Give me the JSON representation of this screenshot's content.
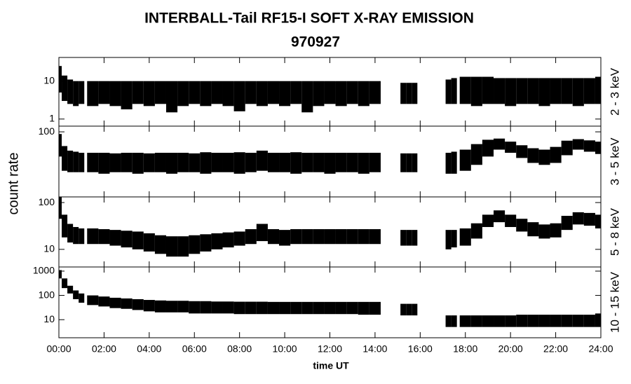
{
  "title": "INTERBALL-Tail RF15-I SOFT X-RAY EMISSION",
  "subtitle": "970927",
  "ylabel": "count rate",
  "xlabel": "time UT",
  "chart_data": [
    {
      "type": "band",
      "label": "2 - 3 keV",
      "log_scale": true,
      "xlim": [
        0,
        24
      ],
      "ylim": [
        0.65,
        42
      ],
      "yticks": [
        1,
        10
      ],
      "x": [
        0,
        0.25,
        0.5,
        0.75,
        1,
        1.5,
        2,
        2.5,
        3,
        3.5,
        4,
        4.5,
        5,
        5.5,
        6,
        6.5,
        7,
        7.5,
        8,
        8.5,
        9,
        9.5,
        10,
        10.5,
        11,
        11.5,
        12,
        12.5,
        13,
        13.5,
        14,
        14.5,
        15.25,
        15.5,
        15.75,
        16.5,
        17.25,
        17.5,
        18,
        18.5,
        19,
        19.5,
        20,
        20.5,
        21,
        21.5,
        22,
        22.5,
        23,
        23.5,
        24
      ],
      "series": [
        {
          "color": "#000000",
          "values": [
            25,
            14,
            11,
            10,
            10,
            10,
            10,
            10,
            10,
            10,
            10,
            10,
            10,
            10,
            10,
            10,
            10,
            10,
            10,
            10,
            10,
            10,
            10,
            10,
            10,
            10,
            10,
            10,
            10,
            10,
            10,
            null,
            9,
            9,
            9,
            null,
            11,
            12,
            13,
            13,
            13,
            12,
            12,
            12,
            12,
            12,
            12,
            12,
            12,
            12,
            13
          ]
        },
        {
          "color": "#000000",
          "values": [
            5,
            3,
            2.5,
            2.2,
            2.5,
            2.2,
            2.5,
            2.2,
            1.8,
            2.5,
            2.2,
            2.5,
            1.5,
            2.2,
            2.5,
            2.2,
            2.5,
            2.2,
            1.6,
            2.5,
            2.2,
            2.5,
            2.2,
            2.5,
            1.5,
            2.2,
            2.5,
            2.2,
            2.5,
            2.2,
            2.5,
            null,
            2.5,
            2.5,
            2.5,
            null,
            2.5,
            2.5,
            2.5,
            2.2,
            2.5,
            2.5,
            2.2,
            2.5,
            2.5,
            2.2,
            2.5,
            2.5,
            2.2,
            2.5,
            2.5
          ]
        }
      ]
    },
    {
      "type": "band",
      "label": "3 - 5 keV",
      "log_scale": true,
      "xlim": [
        0,
        24
      ],
      "ylim": [
        4.2,
        132
      ],
      "yticks": [
        100
      ],
      "x": [
        0,
        0.25,
        0.5,
        0.75,
        1,
        1.5,
        2,
        2.5,
        3,
        3.5,
        4,
        4.5,
        5,
        5.5,
        6,
        6.5,
        7,
        7.5,
        8,
        8.5,
        9,
        9.5,
        10,
        10.5,
        11,
        11.5,
        12,
        12.5,
        13,
        13.5,
        14,
        14.5,
        15.25,
        15.5,
        15.75,
        16.5,
        17.25,
        17.5,
        18,
        18.5,
        19,
        19.5,
        20,
        20.5,
        21,
        21.5,
        22,
        22.5,
        23,
        23.5,
        24
      ],
      "series": [
        {
          "color": "#000000",
          "values": [
            90,
            50,
            40,
            38,
            36,
            36,
            36,
            35,
            36,
            36,
            35,
            36,
            36,
            36,
            35,
            37,
            36,
            36,
            37,
            36,
            40,
            36,
            36,
            37,
            36,
            36,
            36,
            36,
            36,
            36,
            36,
            null,
            35,
            35,
            35,
            null,
            36,
            38,
            42,
            55,
            68,
            72,
            62,
            52,
            45,
            42,
            48,
            65,
            70,
            66,
            62
          ]
        },
        {
          "color": "#000000",
          "values": [
            30,
            15,
            14,
            14,
            14,
            14,
            13,
            14,
            14,
            13,
            14,
            14,
            13,
            14,
            14,
            13,
            14,
            14,
            13,
            14,
            15,
            14,
            14,
            13,
            14,
            14,
            13,
            14,
            14,
            13,
            14,
            null,
            14,
            14,
            14,
            null,
            13,
            13,
            15,
            20,
            30,
            42,
            36,
            28,
            22,
            20,
            22,
            32,
            42,
            38,
            34
          ]
        }
      ]
    },
    {
      "type": "band",
      "label": "5 - 8 keV",
      "log_scale": true,
      "xlim": [
        0,
        24
      ],
      "ylim": [
        4.2,
        132
      ],
      "yticks": [
        10,
        100
      ],
      "x": [
        0,
        0.25,
        0.5,
        0.75,
        1,
        1.5,
        2,
        2.5,
        3,
        3.5,
        4,
        4.5,
        5,
        5.5,
        6,
        6.5,
        7,
        7.5,
        8,
        8.5,
        9,
        9.5,
        10,
        10.5,
        11,
        11.5,
        12,
        12.5,
        13,
        13.5,
        14,
        14.5,
        15.25,
        15.5,
        15.75,
        16.5,
        17.25,
        17.5,
        18,
        18.5,
        19,
        19.5,
        20,
        20.5,
        21,
        21.5,
        22,
        22.5,
        23,
        23.5,
        24
      ],
      "series": [
        {
          "color": "#000000",
          "values": [
            130,
            55,
            35,
            30,
            28,
            28,
            27,
            26,
            25,
            24,
            22,
            20,
            19,
            19,
            20,
            21,
            22,
            23,
            24,
            27,
            35,
            27,
            26,
            27,
            27,
            27,
            27,
            27,
            27,
            27,
            27,
            null,
            26,
            26,
            26,
            null,
            26,
            26,
            28,
            36,
            55,
            68,
            55,
            45,
            38,
            34,
            36,
            52,
            62,
            60,
            55
          ]
        },
        {
          "color": "#000000",
          "values": [
            45,
            18,
            14,
            13,
            13,
            13,
            13,
            12,
            11,
            10,
            9,
            8,
            7,
            7,
            8,
            9,
            10,
            11,
            12,
            13,
            15,
            13,
            12,
            13,
            13,
            13,
            13,
            13,
            13,
            13,
            13,
            null,
            12,
            12,
            12,
            null,
            10,
            11,
            12,
            17,
            30,
            38,
            30,
            24,
            19,
            17,
            18,
            26,
            34,
            32,
            28
          ]
        }
      ]
    },
    {
      "type": "band",
      "label": "10 - 15 keV",
      "log_scale": true,
      "xlim": [
        0,
        24
      ],
      "ylim": [
        1.8,
        1483
      ],
      "yticks": [
        10,
        100,
        1000
      ],
      "xticks": [
        {
          "value": 0,
          "label": "00:00"
        },
        {
          "value": 2,
          "label": "02:00"
        },
        {
          "value": 4,
          "label": "04:00"
        },
        {
          "value": 6,
          "label": "06:00"
        },
        {
          "value": 8,
          "label": "08:00"
        },
        {
          "value": 10,
          "label": "10:00"
        },
        {
          "value": 12,
          "label": "12:00"
        },
        {
          "value": 14,
          "label": "14:00"
        },
        {
          "value": 16,
          "label": "16:00"
        },
        {
          "value": 18,
          "label": "18:00"
        },
        {
          "value": 20,
          "label": "20:00"
        },
        {
          "value": 22,
          "label": "22:00"
        },
        {
          "value": 24,
          "label": "24:00"
        }
      ],
      "x": [
        0,
        0.25,
        0.5,
        0.75,
        1,
        1.5,
        2,
        2.5,
        3,
        3.5,
        4,
        4.5,
        5,
        5.5,
        6,
        6.5,
        7,
        7.5,
        8,
        8.5,
        9,
        9.5,
        10,
        10.5,
        11,
        11.5,
        12,
        12.5,
        13,
        13.5,
        14,
        14.5,
        15.25,
        15.5,
        15.75,
        16.5,
        17.25,
        17.5,
        18,
        18.5,
        19,
        19.5,
        20,
        20.5,
        21,
        21.5,
        22,
        22.5,
        23,
        23.5,
        24
      ],
      "series": [
        {
          "color": "#000000",
          "values": [
            1100,
            500,
            250,
            160,
            120,
            100,
            90,
            80,
            75,
            70,
            65,
            62,
            60,
            60,
            58,
            58,
            56,
            56,
            55,
            55,
            55,
            54,
            54,
            54,
            54,
            54,
            54,
            54,
            54,
            54,
            54,
            null,
            45,
            45,
            45,
            null,
            15,
            15,
            15,
            15,
            15,
            15,
            15,
            16,
            16,
            16,
            16,
            16,
            16,
            16,
            18
          ]
        },
        {
          "color": "#000000",
          "values": [
            500,
            200,
            120,
            70,
            50,
            40,
            35,
            30,
            28,
            25,
            22,
            20,
            20,
            20,
            18,
            18,
            18,
            18,
            17,
            17,
            17,
            17,
            17,
            17,
            17,
            17,
            17,
            17,
            17,
            16,
            16,
            null,
            15,
            15,
            15,
            null,
            5,
            5,
            5,
            5,
            5,
            5,
            5,
            5,
            5,
            5,
            5,
            5,
            5,
            5,
            5
          ]
        }
      ]
    }
  ]
}
